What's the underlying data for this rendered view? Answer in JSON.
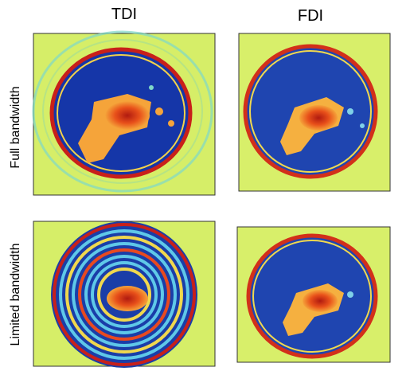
{
  "columns": [
    "TDI",
    "FDI"
  ],
  "rows": [
    "Full bandwidth",
    "Limited bandwidth"
  ]
}
